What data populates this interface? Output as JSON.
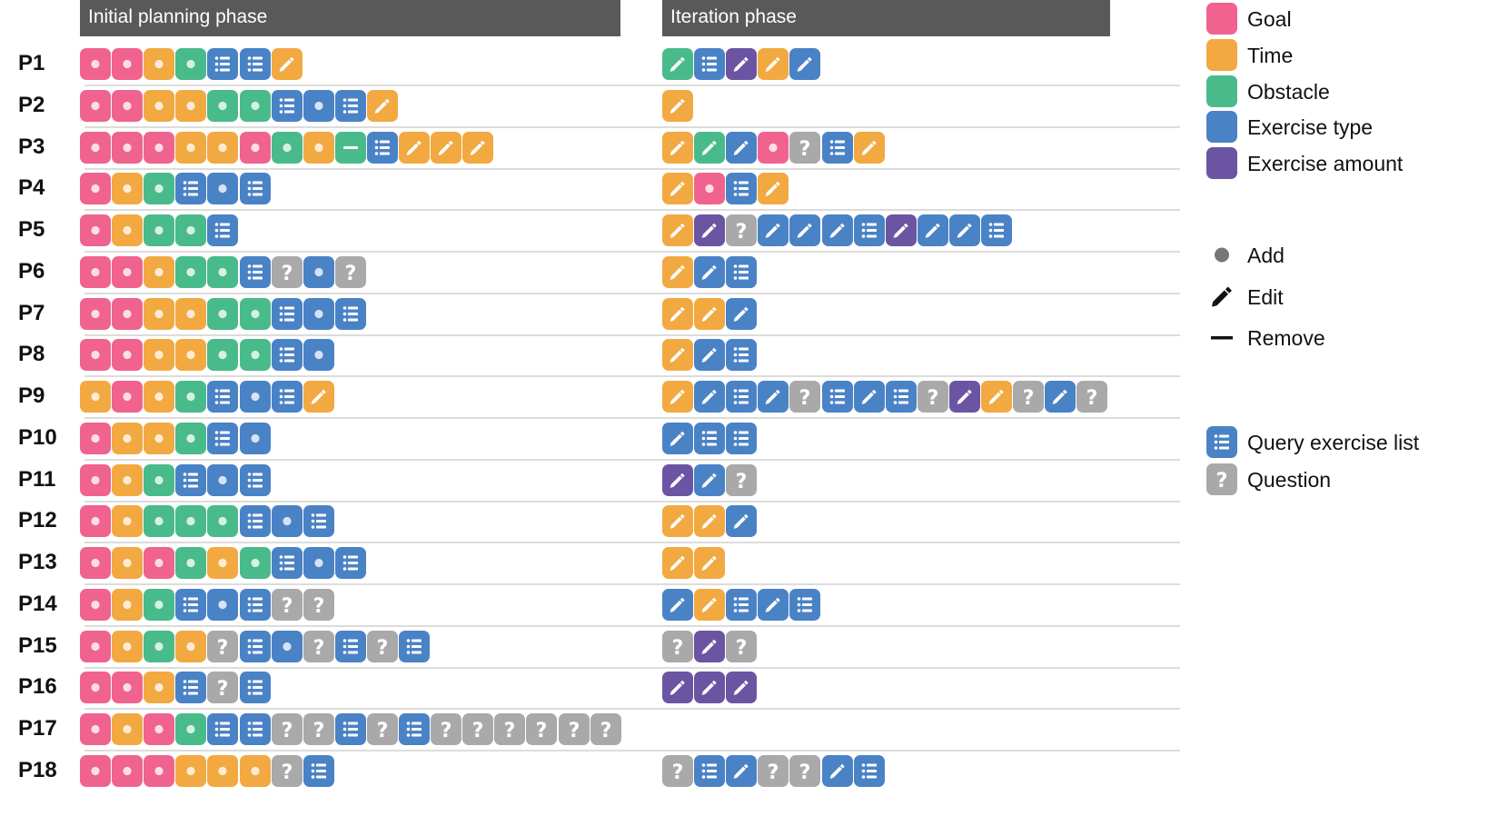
{
  "headers": {
    "initial": "Initial planning phase",
    "iteration": "Iteration phase"
  },
  "category_colors": {
    "goal": "#f0638f",
    "time": "#f2a941",
    "obstacle": "#49bb8a",
    "exercise_type": "#4a82c6",
    "exercise_amount": "#6b55a2",
    "question": "#a9a9a9"
  },
  "legend": {
    "categories": [
      {
        "key": "goal",
        "label": "Goal"
      },
      {
        "key": "time",
        "label": "Time"
      },
      {
        "key": "obstacle",
        "label": "Obstacle"
      },
      {
        "key": "exercise_type",
        "label": "Exercise type"
      },
      {
        "key": "exercise_amount",
        "label": "Exercise amount"
      }
    ],
    "actions": [
      {
        "icon": "add-dot-icon",
        "label": "Add"
      },
      {
        "icon": "pencil-icon",
        "label": "Edit"
      },
      {
        "icon": "minus-icon",
        "label": "Remove"
      }
    ],
    "other": [
      {
        "icon": "list-icon",
        "color": "exercise_type",
        "label": "Query exercise list"
      },
      {
        "icon": "question-icon",
        "color": "question",
        "label": "Question"
      }
    ]
  },
  "code_key": "Tokens are color-action: g=goal, t=time, o=obstacle, b=exercise type, v=exercise amount; A=add, E=edit, R=remove; L=query exercise list, Q=question",
  "rows": [
    {
      "label": "P1",
      "initial": [
        "gA",
        "gA",
        "tA",
        "oA",
        "L",
        "L",
        "tE"
      ],
      "iteration": [
        "oE",
        "L",
        "vE",
        "tE",
        "bE"
      ]
    },
    {
      "label": "P2",
      "initial": [
        "gA",
        "gA",
        "tA",
        "tA",
        "oA",
        "oA",
        "L",
        "bA",
        "L",
        "tE"
      ],
      "iteration": [
        "tE"
      ]
    },
    {
      "label": "P3",
      "initial": [
        "gA",
        "gA",
        "gA",
        "tA",
        "tA",
        "gA",
        "oA",
        "tA",
        "oR",
        "L",
        "tE",
        "tE",
        "tE"
      ],
      "iteration": [
        "tE",
        "oE",
        "bE",
        "gA",
        "Q",
        "L",
        "tE"
      ]
    },
    {
      "label": "P4",
      "initial": [
        "gA",
        "tA",
        "oA",
        "L",
        "bA",
        "L"
      ],
      "iteration": [
        "tE",
        "gA",
        "L",
        "tE"
      ]
    },
    {
      "label": "P5",
      "initial": [
        "gA",
        "tA",
        "oA",
        "oA",
        "L"
      ],
      "iteration": [
        "tE",
        "vE",
        "Q",
        "bE",
        "bE",
        "bE",
        "L",
        "vE",
        "bE",
        "bE",
        "L"
      ]
    },
    {
      "label": "P6",
      "initial": [
        "gA",
        "gA",
        "tA",
        "oA",
        "oA",
        "L",
        "Q",
        "bA",
        "Q"
      ],
      "iteration": [
        "tE",
        "bE",
        "L"
      ]
    },
    {
      "label": "P7",
      "initial": [
        "gA",
        "gA",
        "tA",
        "tA",
        "oA",
        "oA",
        "L",
        "bA",
        "L"
      ],
      "iteration": [
        "tE",
        "tE",
        "bE"
      ]
    },
    {
      "label": "P8",
      "initial": [
        "gA",
        "gA",
        "tA",
        "tA",
        "oA",
        "oA",
        "L",
        "bA"
      ],
      "iteration": [
        "tE",
        "bE",
        "L"
      ]
    },
    {
      "label": "P9",
      "initial": [
        "tA",
        "gA",
        "tA",
        "oA",
        "L",
        "bA",
        "L",
        "tE"
      ],
      "iteration": [
        "tE",
        "bE",
        "L",
        "bE",
        "Q",
        "L",
        "bE",
        "L",
        "Q",
        "vE",
        "tE",
        "Q",
        "bE",
        "Q"
      ]
    },
    {
      "label": "P10",
      "initial": [
        "gA",
        "tA",
        "tA",
        "oA",
        "L",
        "bA"
      ],
      "iteration": [
        "bE",
        "L",
        "L"
      ]
    },
    {
      "label": "P11",
      "initial": [
        "gA",
        "tA",
        "oA",
        "L",
        "bA",
        "L"
      ],
      "iteration": [
        "vE",
        "bE",
        "Q"
      ]
    },
    {
      "label": "P12",
      "initial": [
        "gA",
        "tA",
        "oA",
        "oA",
        "oA",
        "L",
        "bA",
        "L"
      ],
      "iteration": [
        "tE",
        "tE",
        "bE"
      ]
    },
    {
      "label": "P13",
      "initial": [
        "gA",
        "tA",
        "gA",
        "oA",
        "tA",
        "oA",
        "L",
        "bA",
        "L"
      ],
      "iteration": [
        "tE",
        "tE"
      ]
    },
    {
      "label": "P14",
      "initial": [
        "gA",
        "tA",
        "oA",
        "L",
        "bA",
        "L",
        "Q",
        "Q"
      ],
      "iteration": [
        "bE",
        "tE",
        "L",
        "bE",
        "L"
      ]
    },
    {
      "label": "P15",
      "initial": [
        "gA",
        "tA",
        "oA",
        "tA",
        "Q",
        "L",
        "bA",
        "Q",
        "L",
        "Q",
        "L"
      ],
      "iteration": [
        "Q",
        "vE",
        "Q"
      ]
    },
    {
      "label": "P16",
      "initial": [
        "gA",
        "gA",
        "tA",
        "L",
        "Q",
        "L"
      ],
      "iteration": [
        "vE",
        "vE",
        "vE"
      ]
    },
    {
      "label": "P17",
      "initial": [
        "gA",
        "tA",
        "gA",
        "oA",
        "L",
        "L",
        "Q",
        "Q",
        "L",
        "Q",
        "L",
        "Q",
        "Q",
        "Q",
        "Q",
        "Q",
        "Q"
      ],
      "iteration": []
    },
    {
      "label": "P18",
      "initial": [
        "gA",
        "gA",
        "gA",
        "tA",
        "tA",
        "tA",
        "Q",
        "L"
      ],
      "iteration": [
        "Q",
        "L",
        "bE",
        "Q",
        "Q",
        "bE",
        "L"
      ]
    }
  ]
}
